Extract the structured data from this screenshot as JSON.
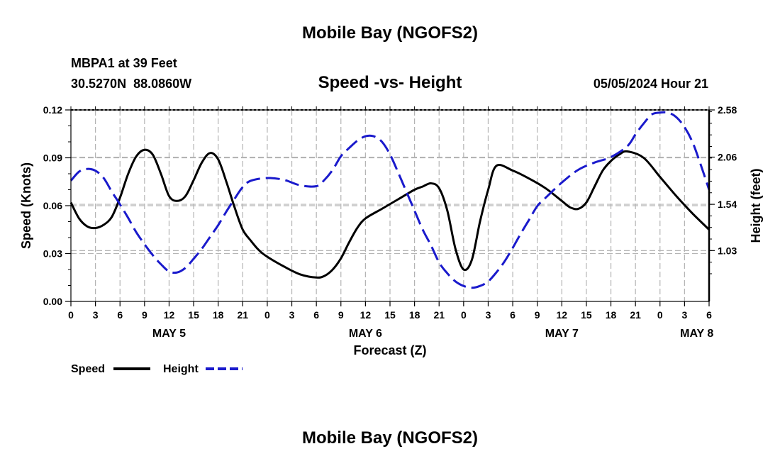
{
  "page_title": "Mobile Bay (NGOFS2)",
  "footer_title": "Mobile Bay (NGOFS2)",
  "station": {
    "name": "MBPA1 at 39 Feet",
    "coords": "30.5270N  88.0860W"
  },
  "timestamp": "05/05/2024 Hour 21",
  "colors": {
    "speed": "#000000",
    "height": "#1a1acc",
    "grid": "#b4b4b4"
  },
  "chart_data": {
    "type": "line",
    "title": "Speed -vs- Height",
    "xlabel": "Forecast (Z)",
    "ylabel_left": "Speed (Knots)",
    "ylabel_right": "Height (feet)",
    "x_unit": "hours from 00Z May 5",
    "xlim": [
      0,
      78
    ],
    "ylim_left": [
      0,
      0.12
    ],
    "ylim_right": [
      0.47,
      2.58
    ],
    "y_ticks_left": [
      {
        "v": 0,
        "label": "0.00"
      },
      {
        "v": 0.03,
        "label": "0.03"
      },
      {
        "v": 0.06,
        "label": "0.06"
      },
      {
        "v": 0.09,
        "label": "0.09"
      },
      {
        "v": 0.12,
        "label": "0.12"
      }
    ],
    "y_ticks_right": [
      {
        "v": 1.03,
        "label": "1.03"
      },
      {
        "v": 1.54,
        "label": "1.54"
      },
      {
        "v": 2.06,
        "label": "2.06"
      },
      {
        "v": 2.58,
        "label": "2.58"
      }
    ],
    "x_ticks": [
      {
        "v": 0,
        "label": "0"
      },
      {
        "v": 3,
        "label": "3"
      },
      {
        "v": 6,
        "label": "6"
      },
      {
        "v": 9,
        "label": "9"
      },
      {
        "v": 12,
        "label": "12"
      },
      {
        "v": 15,
        "label": "15"
      },
      {
        "v": 18,
        "label": "18"
      },
      {
        "v": 21,
        "label": "21"
      },
      {
        "v": 24,
        "label": "0"
      },
      {
        "v": 27,
        "label": "3"
      },
      {
        "v": 30,
        "label": "6"
      },
      {
        "v": 33,
        "label": "9"
      },
      {
        "v": 36,
        "label": "12"
      },
      {
        "v": 39,
        "label": "15"
      },
      {
        "v": 42,
        "label": "18"
      },
      {
        "v": 45,
        "label": "21"
      },
      {
        "v": 48,
        "label": "0"
      },
      {
        "v": 51,
        "label": "3"
      },
      {
        "v": 54,
        "label": "6"
      },
      {
        "v": 57,
        "label": "9"
      },
      {
        "v": 60,
        "label": "12"
      },
      {
        "v": 63,
        "label": "15"
      },
      {
        "v": 66,
        "label": "18"
      },
      {
        "v": 69,
        "label": "21"
      },
      {
        "v": 72,
        "label": "0"
      },
      {
        "v": 75,
        "label": "3"
      },
      {
        "v": 78,
        "label": "6"
      }
    ],
    "day_labels": [
      {
        "v": 12,
        "label": "MAY 5"
      },
      {
        "v": 36,
        "label": "MAY 6"
      },
      {
        "v": 60,
        "label": "MAY 7"
      },
      {
        "v": 76.5,
        "label": "MAY 8"
      }
    ],
    "grid": true,
    "legend": "bottom-left",
    "series": [
      {
        "name": "Speed",
        "axis": "left",
        "style": "solid",
        "x": [
          0,
          1,
          2,
          3,
          4,
          5,
          6,
          7,
          8,
          9,
          10,
          11,
          12,
          13,
          14,
          15,
          16,
          17,
          18,
          19,
          20,
          21,
          22,
          23,
          24,
          26,
          28,
          30,
          31,
          32,
          33,
          34,
          35,
          36,
          38,
          40,
          42,
          43,
          44,
          45,
          46,
          47,
          48,
          49,
          50,
          51,
          52,
          54,
          56,
          58,
          60,
          61,
          62,
          63,
          64,
          65,
          66,
          67,
          68,
          70,
          72,
          74,
          76,
          78
        ],
        "y": [
          0.062,
          0.052,
          0.047,
          0.046,
          0.048,
          0.053,
          0.065,
          0.08,
          0.091,
          0.095,
          0.092,
          0.08,
          0.066,
          0.063,
          0.066,
          0.076,
          0.087,
          0.093,
          0.089,
          0.075,
          0.059,
          0.045,
          0.038,
          0.032,
          0.028,
          0.022,
          0.017,
          0.015,
          0.016,
          0.02,
          0.027,
          0.037,
          0.046,
          0.052,
          0.058,
          0.064,
          0.07,
          0.072,
          0.074,
          0.071,
          0.057,
          0.033,
          0.02,
          0.026,
          0.05,
          0.07,
          0.085,
          0.082,
          0.077,
          0.071,
          0.063,
          0.059,
          0.058,
          0.062,
          0.072,
          0.082,
          0.088,
          0.092,
          0.094,
          0.09,
          0.078,
          0.066,
          0.055,
          0.045
        ]
      },
      {
        "name": "Height",
        "axis": "right",
        "style": "dashed",
        "x": [
          0,
          1,
          2,
          3,
          4,
          5,
          6,
          7,
          8,
          9,
          10,
          11,
          12,
          13,
          14,
          15,
          16,
          17,
          18,
          19,
          20,
          21,
          22,
          24,
          26,
          28,
          30,
          31,
          32,
          33,
          34,
          35,
          36,
          37,
          38,
          39,
          40,
          41,
          42,
          43,
          44,
          45,
          46,
          47,
          48,
          49,
          50,
          51,
          52,
          53,
          54,
          55,
          56,
          57,
          58,
          60,
          62,
          64,
          66,
          68,
          69,
          70,
          71,
          72,
          73,
          74,
          75,
          76,
          77,
          78
        ],
        "y": [
          1.8,
          1.9,
          1.93,
          1.91,
          1.83,
          1.68,
          1.54,
          1.39,
          1.23,
          1.1,
          0.98,
          0.88,
          0.8,
          0.79,
          0.84,
          0.94,
          1.05,
          1.18,
          1.31,
          1.46,
          1.6,
          1.73,
          1.8,
          1.83,
          1.81,
          1.75,
          1.74,
          1.81,
          1.92,
          2.07,
          2.16,
          2.24,
          2.29,
          2.29,
          2.23,
          2.09,
          1.89,
          1.68,
          1.47,
          1.26,
          1.09,
          0.9,
          0.78,
          0.69,
          0.64,
          0.62,
          0.64,
          0.69,
          0.79,
          0.91,
          1.06,
          1.22,
          1.37,
          1.52,
          1.61,
          1.78,
          1.92,
          2.0,
          2.06,
          2.18,
          2.31,
          2.43,
          2.53,
          2.55,
          2.55,
          2.5,
          2.39,
          2.22,
          1.97,
          1.7
        ]
      }
    ]
  }
}
